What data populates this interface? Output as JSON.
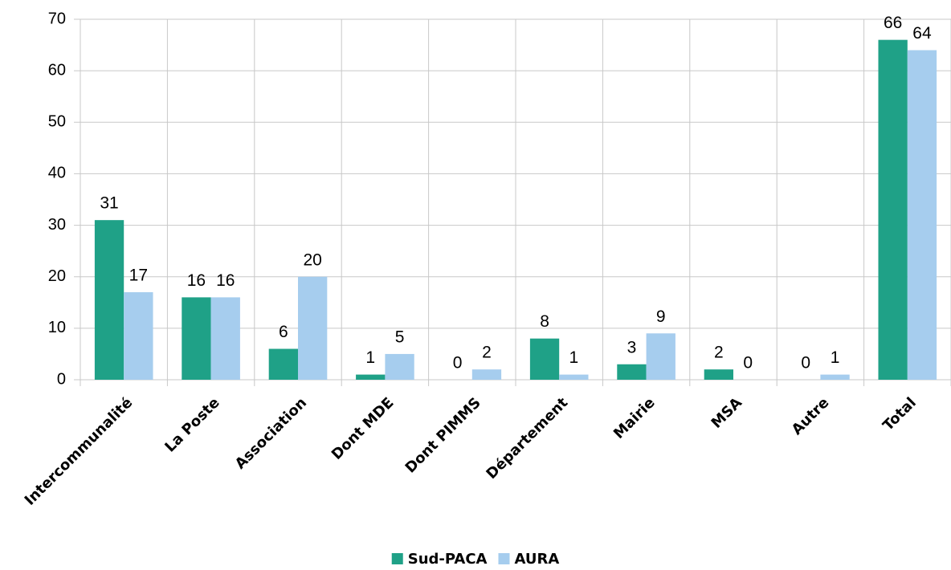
{
  "chart_data": {
    "type": "bar",
    "categories": [
      "Intercommunalité",
      "La Poste",
      "Association",
      "Dont MDE",
      "Dont PIMMS",
      "Département",
      "Mairie",
      "MSA",
      "Autre",
      "Total"
    ],
    "series": [
      {
        "name": "Sud-PACA",
        "color": "#1fa187",
        "values": [
          31,
          16,
          6,
          1,
          0,
          8,
          3,
          2,
          0,
          66
        ]
      },
      {
        "name": "AURA",
        "color": "#a6cdee",
        "values": [
          17,
          16,
          20,
          5,
          2,
          1,
          9,
          0,
          1,
          64
        ]
      }
    ],
    "ylim": [
      0,
      70
    ],
    "yticks": [
      0,
      10,
      20,
      30,
      40,
      50,
      60,
      70
    ],
    "grid": true,
    "legend": "bottom"
  }
}
